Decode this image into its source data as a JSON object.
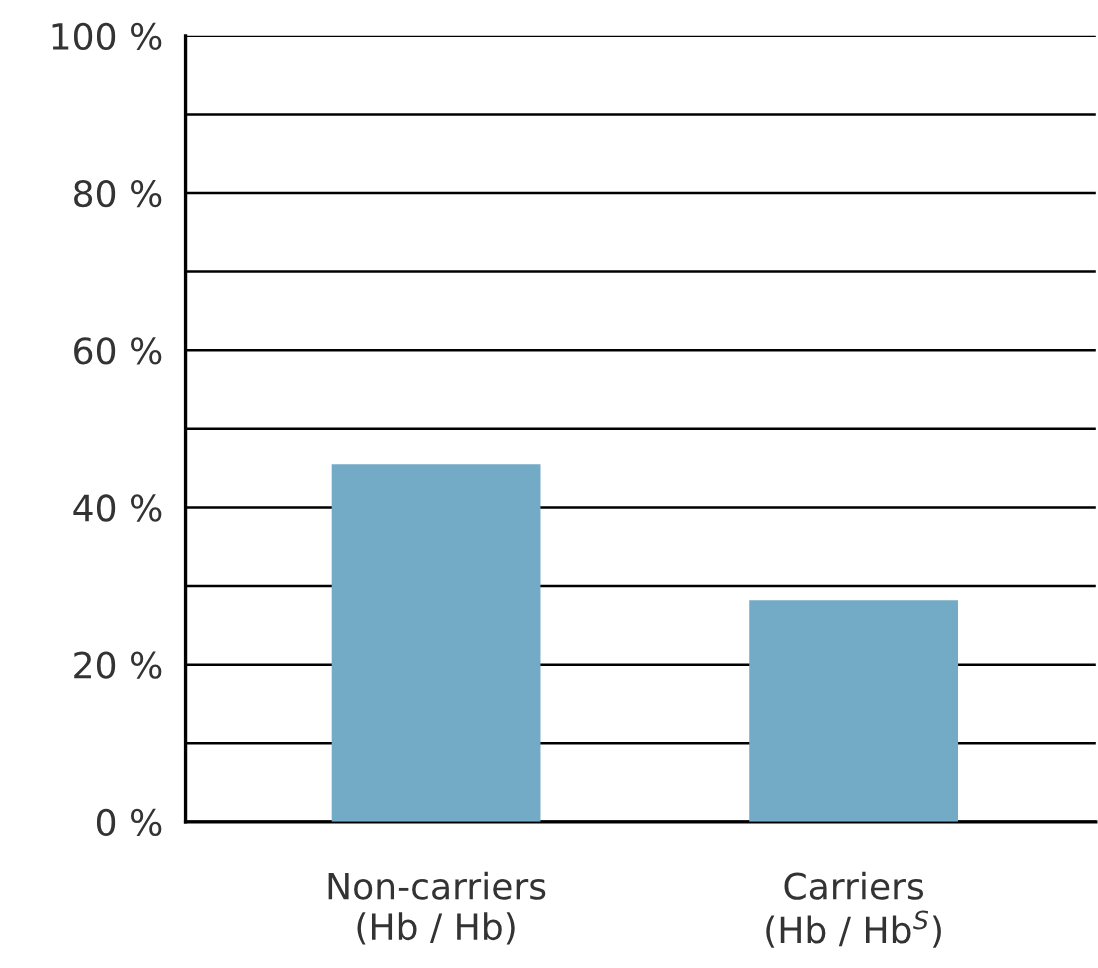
{
  "chart_data": {
    "type": "bar",
    "categories": [
      "Non-carriers\n(Hb / Hb)",
      "Carriers\n(Hb / Hb$^{S}$)"
    ],
    "values": [
      45.5,
      28.2
    ],
    "color": "#73aac6",
    "ylim": [
      0,
      100
    ],
    "yticks": [
      {
        "value": 0,
        "label": "0 %"
      },
      {
        "value": 10,
        "label": null
      },
      {
        "value": 20,
        "label": "20 %"
      },
      {
        "value": 30,
        "label": null
      },
      {
        "value": 40,
        "label": "40 %"
      },
      {
        "value": 50,
        "label": null
      },
      {
        "value": 60,
        "label": "60 %"
      },
      {
        "value": 70,
        "label": null
      },
      {
        "value": 80,
        "label": "80 %"
      },
      {
        "value": 90,
        "label": null
      },
      {
        "value": 100,
        "label": "100 %"
      }
    ],
    "grid": "y"
  }
}
